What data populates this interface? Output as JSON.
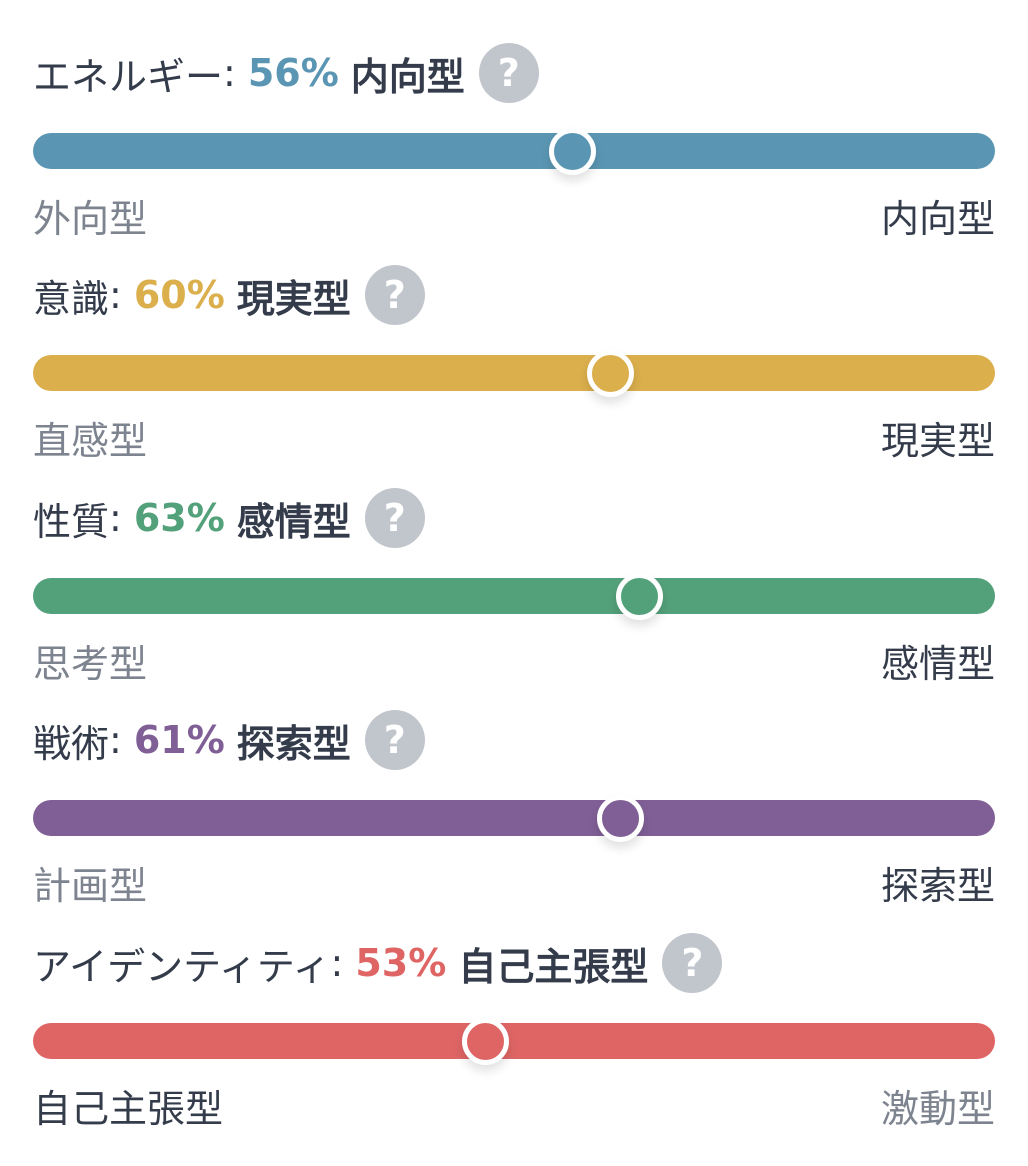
{
  "traits": [
    {
      "name": "エネルギー",
      "percent": "56%",
      "value": 56,
      "type": "内向型",
      "color": "#5a96b3",
      "left_pole": "外向型",
      "right_pole": "内向型",
      "active_side": "right",
      "help_icon": "question-icon"
    },
    {
      "name": "意識",
      "percent": "60%",
      "value": 60,
      "type": "現実型",
      "color": "#dbaf4c",
      "left_pole": "直感型",
      "right_pole": "現実型",
      "active_side": "right",
      "help_icon": "question-icon"
    },
    {
      "name": "性質",
      "percent": "63%",
      "value": 63,
      "type": "感情型",
      "color": "#53a17a",
      "left_pole": "思考型",
      "right_pole": "感情型",
      "active_side": "right",
      "help_icon": "question-icon"
    },
    {
      "name": "戦術",
      "percent": "61%",
      "value": 61,
      "type": "探索型",
      "color": "#805f96",
      "left_pole": "計画型",
      "right_pole": "探索型",
      "active_side": "right",
      "help_icon": "question-icon"
    },
    {
      "name": "アイデンティティ",
      "percent": "53%",
      "value": 53,
      "type": "自己主張型",
      "color": "#df6565",
      "left_pole": "自己主張型",
      "right_pole": "激動型",
      "active_side": "left",
      "help_icon": "question-icon"
    }
  ],
  "help_glyph": "?",
  "colon": ":"
}
